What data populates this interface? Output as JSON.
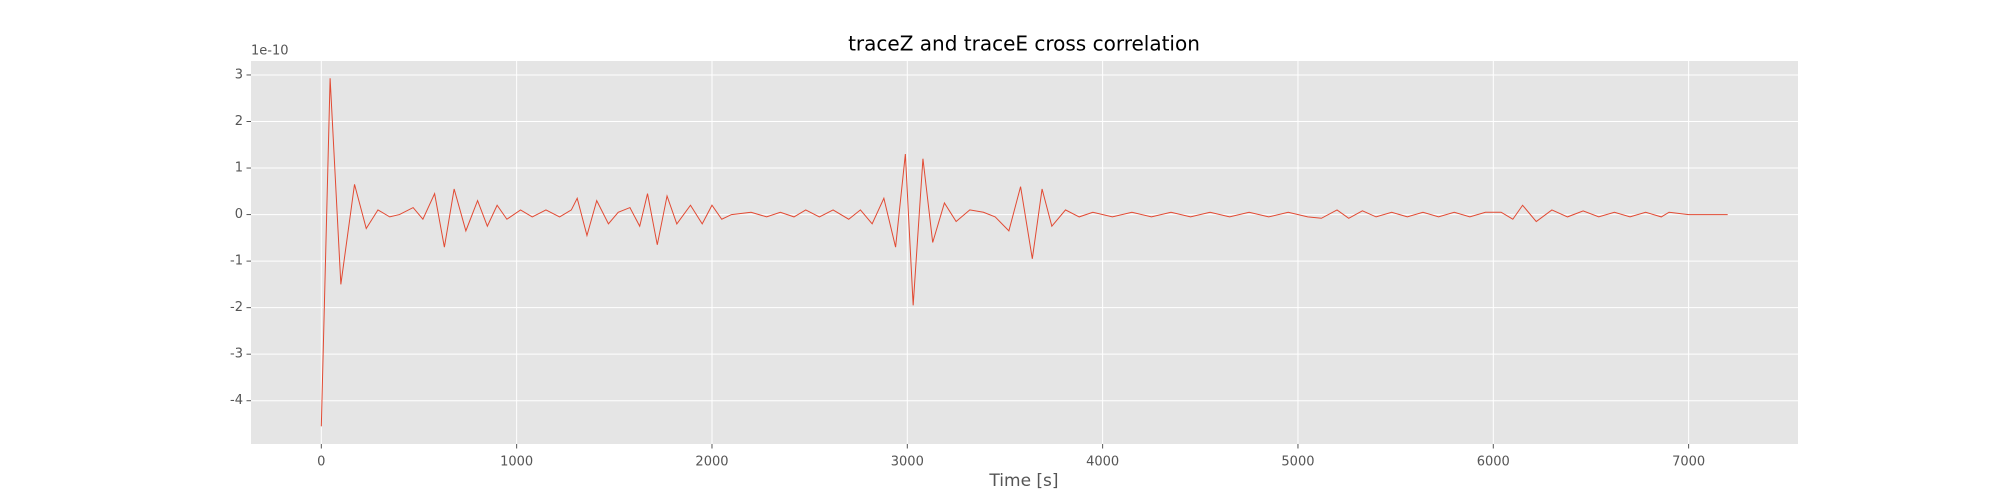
{
  "chart_data": {
    "type": "line",
    "title": "traceZ and traceE cross correlation",
    "x_label": "Time [s]",
    "y_offset_label": "1e-10",
    "xlim": [
      -360,
      7560
    ],
    "ylim": [
      -4.93,
      3.3
    ],
    "xticks": [
      0,
      1000,
      2000,
      3000,
      4000,
      5000,
      6000,
      7000
    ],
    "yticks": [
      -4,
      -3,
      -2,
      -1,
      0,
      1,
      2,
      3
    ],
    "grid": true,
    "series": [
      {
        "color": "#e24a33",
        "x": [
          0,
          45,
          100,
          170,
          230,
          290,
          350,
          400,
          470,
          520,
          580,
          630,
          680,
          740,
          800,
          850,
          900,
          950,
          1020,
          1080,
          1150,
          1220,
          1280,
          1310,
          1360,
          1410,
          1470,
          1520,
          1580,
          1630,
          1670,
          1720,
          1770,
          1820,
          1890,
          1950,
          2000,
          2050,
          2100,
          2200,
          2280,
          2350,
          2420,
          2480,
          2550,
          2620,
          2700,
          2760,
          2820,
          2880,
          2940,
          2990,
          3030,
          3080,
          3130,
          3190,
          3250,
          3320,
          3390,
          3450,
          3520,
          3580,
          3640,
          3690,
          3740,
          3810,
          3880,
          3950,
          4050,
          4150,
          4250,
          4350,
          4450,
          4550,
          4650,
          4750,
          4850,
          4950,
          5050,
          5120,
          5200,
          5260,
          5330,
          5400,
          5480,
          5560,
          5640,
          5720,
          5800,
          5880,
          5960,
          6040,
          6100,
          6150,
          6220,
          6300,
          6380,
          6460,
          6540,
          6620,
          6700,
          6780,
          6860,
          6900,
          7000,
          7200
        ],
        "values": [
          -4.55,
          2.93,
          -1.5,
          0.65,
          -0.3,
          0.1,
          -0.05,
          0,
          0.15,
          -0.1,
          0.45,
          -0.7,
          0.55,
          -0.35,
          0.3,
          -0.25,
          0.2,
          -0.1,
          0.1,
          -0.05,
          0.1,
          -0.05,
          0.1,
          0.35,
          -0.45,
          0.3,
          -0.2,
          0.05,
          0.15,
          -0.25,
          0.45,
          -0.65,
          0.4,
          -0.2,
          0.2,
          -0.2,
          0.2,
          -0.1,
          0,
          0.05,
          -0.05,
          0.05,
          -0.05,
          0.1,
          -0.05,
          0.1,
          -0.1,
          0.1,
          -0.2,
          0.35,
          -0.7,
          1.3,
          -1.95,
          1.2,
          -0.6,
          0.25,
          -0.15,
          0.1,
          0.05,
          -0.05,
          -0.35,
          0.6,
          -0.95,
          0.55,
          -0.25,
          0.1,
          -0.05,
          0.05,
          -0.05,
          0.05,
          -0.05,
          0.05,
          -0.05,
          0.05,
          -0.05,
          0.05,
          -0.05,
          0.05,
          -0.05,
          -0.08,
          0.1,
          -0.08,
          0.08,
          -0.05,
          0.05,
          -0.05,
          0.05,
          -0.05,
          0.05,
          -0.05,
          0.05,
          0.05,
          -0.1,
          0.2,
          -0.15,
          0.1,
          -0.05,
          0.08,
          -0.05,
          0.05,
          -0.05,
          0.05,
          -0.05,
          0.05,
          0,
          0
        ]
      }
    ]
  }
}
